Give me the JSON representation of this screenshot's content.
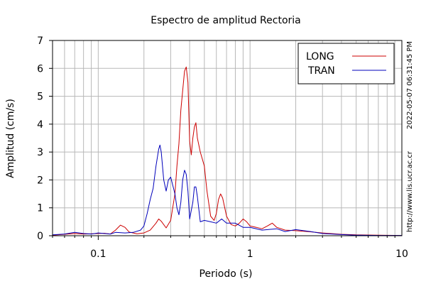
{
  "chart_data": {
    "type": "line",
    "title": "Espectro de amplitud Rectoria",
    "xlabel": "Periodo (s)",
    "ylabel": "Amplitud (cm/s)",
    "xscale": "log",
    "xlim": [
      0.05,
      10
    ],
    "ylim": [
      0,
      7
    ],
    "x_tick_labels": [
      "0.1",
      "1",
      "10"
    ],
    "x_ticks": [
      0.1,
      1,
      10
    ],
    "y_ticks": [
      0,
      1,
      2,
      3,
      4,
      5,
      6,
      7
    ],
    "y_tick_labels": [
      "0",
      "1",
      "2",
      "3",
      "4",
      "5",
      "6",
      "7"
    ],
    "grid": true,
    "legend_position": "top-right",
    "side_text": {
      "timestamp": "2022-05-07 06:31:45 PM",
      "url": "http://www.lis.ucr.ac.cr"
    },
    "series": [
      {
        "name": "LONG",
        "color": "#cc0000",
        "points": [
          [
            0.05,
            0.02
          ],
          [
            0.06,
            0.05
          ],
          [
            0.07,
            0.08
          ],
          [
            0.08,
            0.06
          ],
          [
            0.09,
            0.07
          ],
          [
            0.1,
            0.08
          ],
          [
            0.11,
            0.09
          ],
          [
            0.12,
            0.06
          ],
          [
            0.13,
            0.2
          ],
          [
            0.14,
            0.38
          ],
          [
            0.15,
            0.3
          ],
          [
            0.16,
            0.13
          ],
          [
            0.18,
            0.07
          ],
          [
            0.2,
            0.1
          ],
          [
            0.22,
            0.2
          ],
          [
            0.24,
            0.45
          ],
          [
            0.25,
            0.6
          ],
          [
            0.26,
            0.52
          ],
          [
            0.28,
            0.28
          ],
          [
            0.3,
            0.55
          ],
          [
            0.32,
            1.5
          ],
          [
            0.33,
            2.5
          ],
          [
            0.34,
            3.3
          ],
          [
            0.35,
            4.5
          ],
          [
            0.36,
            5.2
          ],
          [
            0.37,
            5.9
          ],
          [
            0.38,
            6.05
          ],
          [
            0.39,
            5.5
          ],
          [
            0.4,
            3.4
          ],
          [
            0.41,
            2.9
          ],
          [
            0.42,
            3.5
          ],
          [
            0.43,
            3.9
          ],
          [
            0.44,
            4.05
          ],
          [
            0.45,
            3.5
          ],
          [
            0.47,
            3.0
          ],
          [
            0.5,
            2.5
          ],
          [
            0.52,
            1.6
          ],
          [
            0.55,
            0.7
          ],
          [
            0.58,
            0.55
          ],
          [
            0.6,
            0.8
          ],
          [
            0.62,
            1.3
          ],
          [
            0.64,
            1.5
          ],
          [
            0.66,
            1.35
          ],
          [
            0.7,
            0.7
          ],
          [
            0.75,
            0.4
          ],
          [
            0.8,
            0.35
          ],
          [
            0.85,
            0.45
          ],
          [
            0.9,
            0.6
          ],
          [
            0.95,
            0.5
          ],
          [
            1.0,
            0.35
          ],
          [
            1.1,
            0.3
          ],
          [
            1.2,
            0.25
          ],
          [
            1.3,
            0.35
          ],
          [
            1.4,
            0.45
          ],
          [
            1.5,
            0.3
          ],
          [
            1.7,
            0.2
          ],
          [
            2.0,
            0.18
          ],
          [
            2.5,
            0.14
          ],
          [
            3.0,
            0.1
          ],
          [
            4.0,
            0.05
          ],
          [
            5.0,
            0.03
          ],
          [
            7.0,
            0.02
          ],
          [
            10.0,
            0.01
          ]
        ]
      },
      {
        "name": "TRAN",
        "color": "#0000bb",
        "points": [
          [
            0.05,
            0.03
          ],
          [
            0.06,
            0.06
          ],
          [
            0.07,
            0.12
          ],
          [
            0.08,
            0.08
          ],
          [
            0.09,
            0.06
          ],
          [
            0.1,
            0.1
          ],
          [
            0.11,
            0.08
          ],
          [
            0.12,
            0.06
          ],
          [
            0.13,
            0.12
          ],
          [
            0.15,
            0.1
          ],
          [
            0.17,
            0.12
          ],
          [
            0.19,
            0.2
          ],
          [
            0.2,
            0.35
          ],
          [
            0.21,
            0.8
          ],
          [
            0.22,
            1.3
          ],
          [
            0.23,
            1.7
          ],
          [
            0.24,
            2.5
          ],
          [
            0.25,
            3.1
          ],
          [
            0.255,
            3.25
          ],
          [
            0.26,
            3.0
          ],
          [
            0.27,
            2.0
          ],
          [
            0.28,
            1.6
          ],
          [
            0.29,
            2.0
          ],
          [
            0.3,
            2.1
          ],
          [
            0.31,
            1.8
          ],
          [
            0.32,
            1.5
          ],
          [
            0.33,
            1.0
          ],
          [
            0.34,
            0.75
          ],
          [
            0.35,
            1.2
          ],
          [
            0.36,
            2.0
          ],
          [
            0.37,
            2.35
          ],
          [
            0.38,
            2.2
          ],
          [
            0.39,
            1.6
          ],
          [
            0.4,
            0.6
          ],
          [
            0.42,
            1.2
          ],
          [
            0.43,
            1.75
          ],
          [
            0.44,
            1.75
          ],
          [
            0.45,
            1.4
          ],
          [
            0.47,
            0.5
          ],
          [
            0.5,
            0.55
          ],
          [
            0.55,
            0.5
          ],
          [
            0.6,
            0.45
          ],
          [
            0.65,
            0.6
          ],
          [
            0.7,
            0.45
          ],
          [
            0.8,
            0.45
          ],
          [
            0.9,
            0.3
          ],
          [
            1.0,
            0.3
          ],
          [
            1.1,
            0.25
          ],
          [
            1.2,
            0.2
          ],
          [
            1.5,
            0.25
          ],
          [
            1.7,
            0.15
          ],
          [
            2.0,
            0.22
          ],
          [
            2.5,
            0.15
          ],
          [
            3.0,
            0.08
          ],
          [
            4.0,
            0.04
          ],
          [
            5.0,
            0.02
          ],
          [
            7.0,
            0.01
          ],
          [
            10.0,
            0.01
          ]
        ]
      }
    ]
  }
}
